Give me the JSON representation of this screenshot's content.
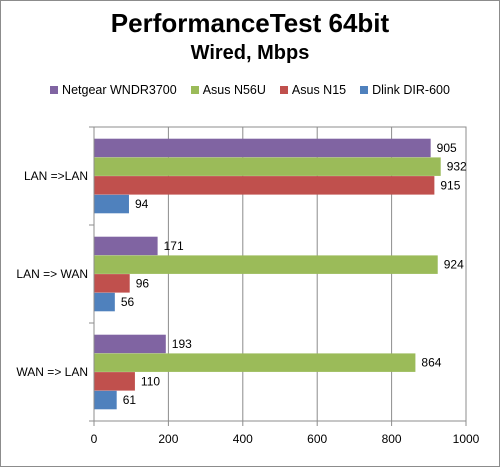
{
  "chart_data": {
    "type": "bar",
    "orientation": "horizontal",
    "title": "PerformanceTest 64bit",
    "subtitle": "Wired, Mbps",
    "categories": [
      "LAN =>LAN",
      "LAN => WAN",
      "WAN => LAN"
    ],
    "series": [
      {
        "name": "Netgear WNDR3700",
        "color": "#8064a2",
        "values": [
          905,
          171,
          193
        ]
      },
      {
        "name": "Asus N56U",
        "color": "#9bbb59",
        "values": [
          932,
          924,
          864
        ]
      },
      {
        "name": "Asus N15",
        "color": "#c0504d",
        "values": [
          915,
          96,
          110
        ]
      },
      {
        "name": "Dlink DIR-600",
        "color": "#4f81bd",
        "values": [
          94,
          56,
          61
        ]
      }
    ],
    "xlim": [
      0,
      1000
    ],
    "xticks": [
      0,
      200,
      400,
      600,
      800,
      1000
    ],
    "grid": true,
    "legend_position": "top"
  }
}
